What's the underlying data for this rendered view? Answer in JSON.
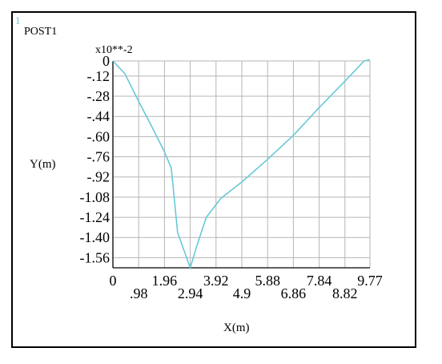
{
  "window_number": "1",
  "chart_data": {
    "type": "line",
    "title": "POST1",
    "xlabel": "X(m)",
    "ylabel": "Y(m)",
    "y_multiplier_label": "x10**-2",
    "grid": true,
    "xlim": [
      0,
      9.77
    ],
    "ylim": [
      -1.64,
      0
    ],
    "x_ticks": [
      0,
      0.98,
      1.96,
      2.94,
      3.92,
      4.9,
      5.88,
      6.86,
      7.84,
      8.82,
      9.77
    ],
    "x_tick_labels": [
      "0",
      ".98",
      "1.96",
      "2.94",
      "3.92",
      "4.9",
      "5.88",
      "6.86",
      "7.84",
      "8.82",
      "9.77"
    ],
    "y_ticks": [
      0,
      -0.12,
      -0.28,
      -0.44,
      -0.6,
      -0.76,
      -0.92,
      -1.08,
      -1.24,
      -1.4,
      -1.56
    ],
    "y_tick_labels": [
      "0",
      "-.12",
      "-.28",
      "-.44",
      "-.60",
      "-.76",
      "-.92",
      "-1.08",
      "-1.24",
      "-1.40",
      "-1.56"
    ],
    "line_color": "#66c9d6",
    "series": [
      {
        "x": [
          0,
          0.45,
          1.0,
          1.5,
          1.96,
          2.22,
          2.46,
          2.94,
          3.2,
          3.55,
          4.1,
          4.9,
          5.88,
          6.86,
          7.84,
          8.82,
          9.55,
          9.77
        ],
        "y": [
          0,
          -0.1,
          -0.33,
          -0.53,
          -0.72,
          -0.85,
          -1.36,
          -1.64,
          -1.46,
          -1.24,
          -1.09,
          -0.96,
          -0.78,
          -0.59,
          -0.37,
          -0.16,
          0.0,
          0.01
        ]
      }
    ]
  }
}
